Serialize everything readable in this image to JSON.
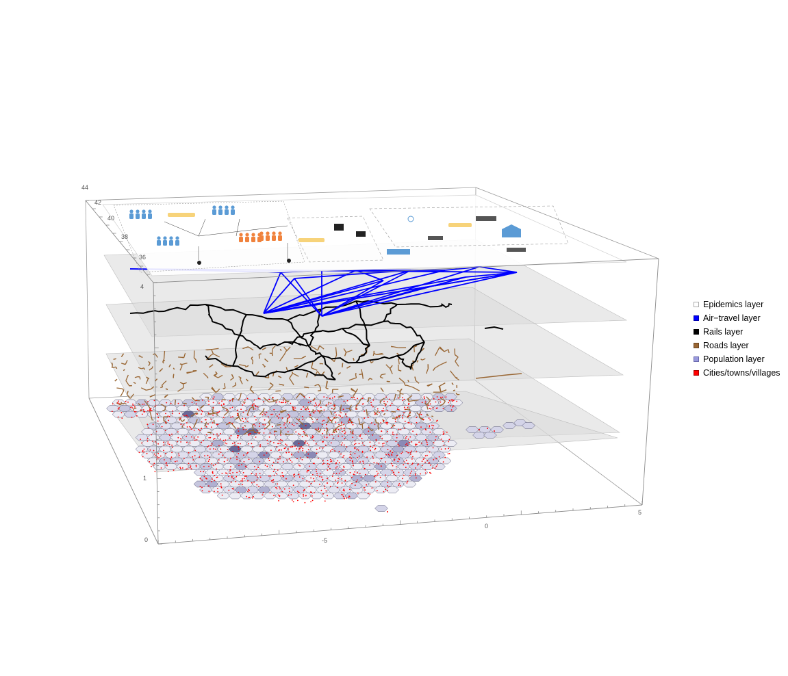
{
  "chart_data": {
    "type": "3d-layered-map",
    "x_axis": {
      "ticks": [
        "-5",
        "0",
        "5"
      ]
    },
    "z_axis": {
      "ticks": [
        "0",
        "1",
        "4"
      ]
    },
    "top_axis": {
      "ticks": [
        "44",
        "42",
        "40",
        "38",
        "36"
      ]
    },
    "layers": [
      {
        "name": "Epidemics layer",
        "color": "#ffffff"
      },
      {
        "name": "Air-travel layer",
        "color": "#0000ff"
      },
      {
        "name": "Rails layer",
        "color": "#000000"
      },
      {
        "name": "Roads layer",
        "color": "#996633"
      },
      {
        "name": "Population layer",
        "color": "#9999dd"
      },
      {
        "name": "Cities/towns/villages",
        "color": "#ff0000"
      }
    ],
    "legend_placement": "right",
    "grid": false
  },
  "legend": {
    "items": [
      {
        "label": "Epidemics layer",
        "color": "#ffffff"
      },
      {
        "label": "Air−travel layer",
        "color": "#0000ff"
      },
      {
        "label": "Rails layer",
        "color": "#000000"
      },
      {
        "label": "Roads layer",
        "color": "#996633"
      },
      {
        "label": "Population layer",
        "color": "#9999dd"
      },
      {
        "label": "Cities/towns/villages",
        "color": "#ff0000"
      }
    ]
  }
}
